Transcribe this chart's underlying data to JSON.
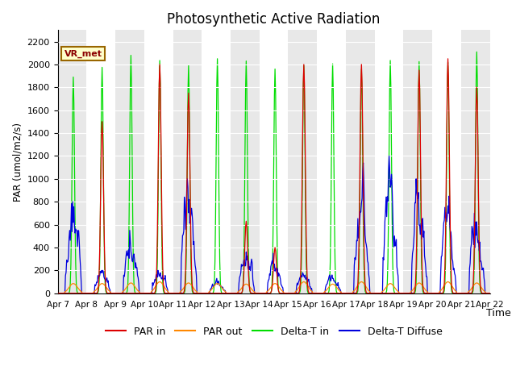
{
  "title": "Photosynthetic Active Radiation",
  "ylabel": "PAR (umol/m2/s)",
  "xlabel": "Time",
  "label_text": "VR_met",
  "ylim": [
    0,
    2300
  ],
  "yticks": [
    0,
    200,
    400,
    600,
    800,
    1000,
    1200,
    1400,
    1600,
    1800,
    2000,
    2200
  ],
  "colors": {
    "par_in": "#dd0000",
    "par_out": "#ff8800",
    "delta_t_in": "#00dd00",
    "delta_t_diffuse": "#0000dd"
  },
  "legend_labels": [
    "PAR in",
    "PAR out",
    "Delta-T in",
    "Delta-T Diffuse"
  ],
  "band_colors": [
    "#e8e8e8",
    "#ffffff"
  ],
  "title_fontsize": 12,
  "num_days": 15,
  "samples_per_day": 48
}
